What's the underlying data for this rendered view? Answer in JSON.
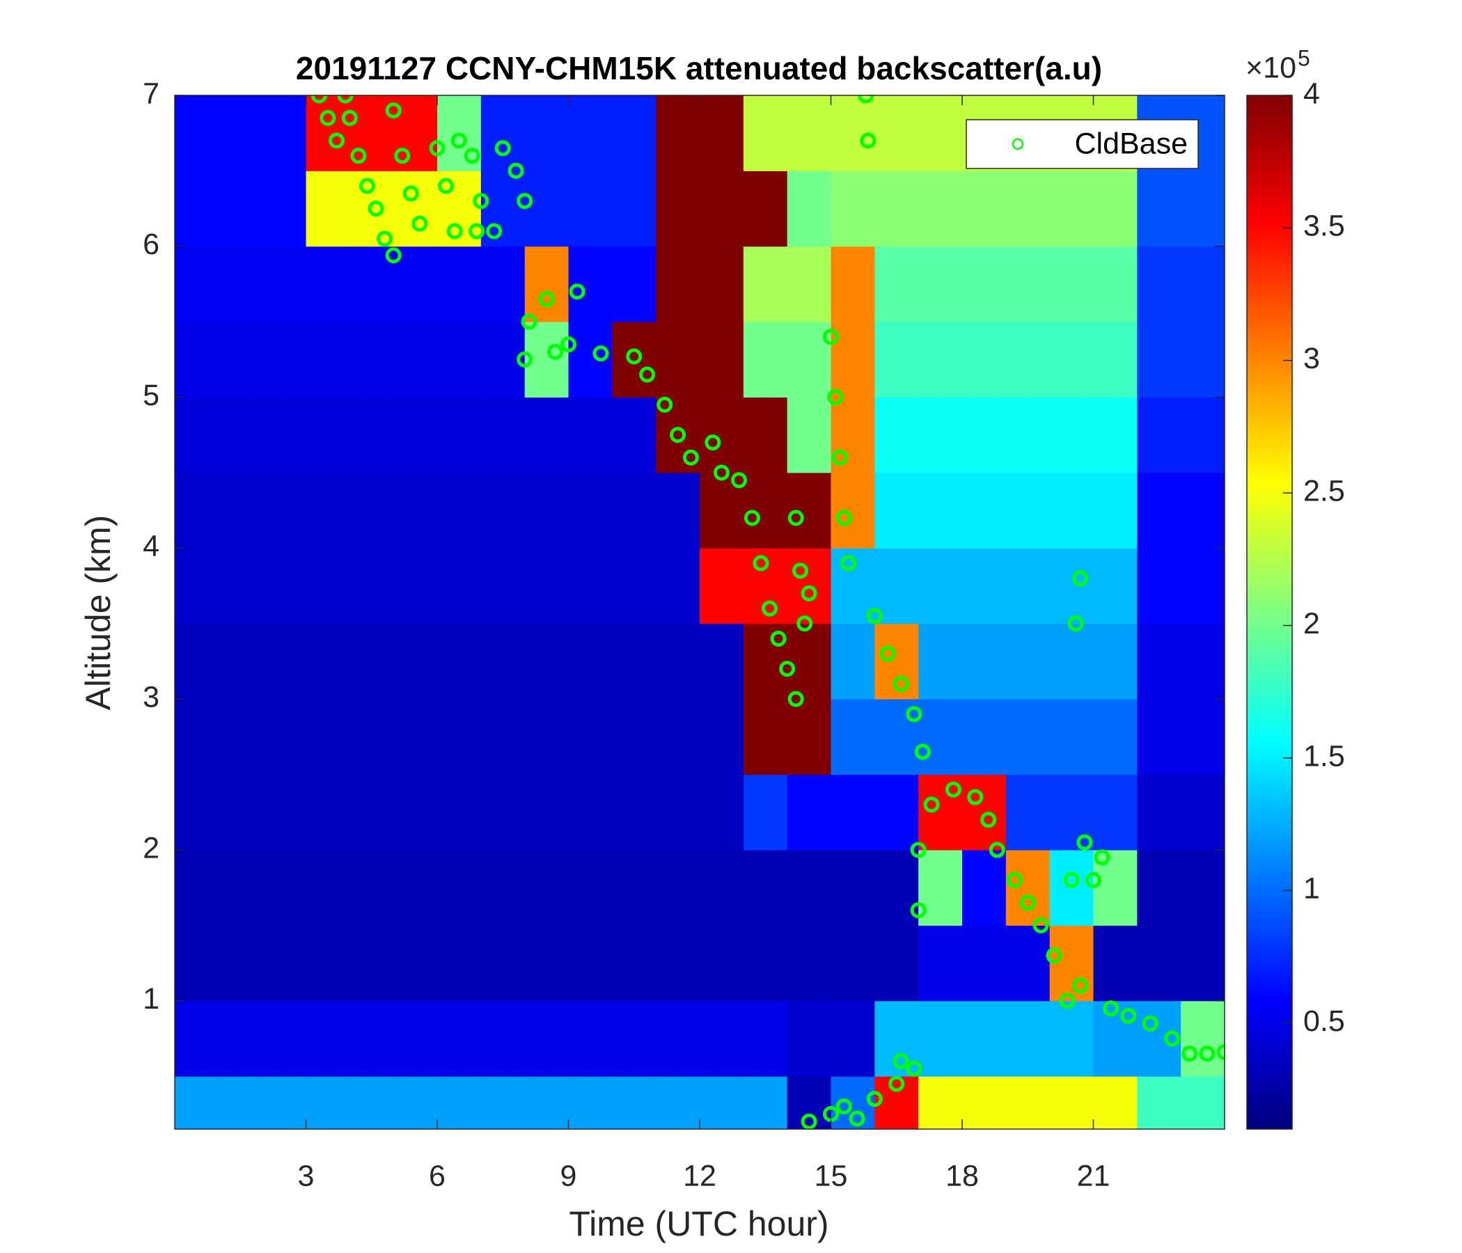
{
  "chart_data": {
    "type": "heatmap",
    "title": "20191127 CCNY-CHM15K attenuated backscatter(a.u)",
    "x_label": "Time (UTC hour)",
    "y_label": "Altitude (km)",
    "xlim": [
      0,
      24
    ],
    "ylim": [
      0.15,
      7
    ],
    "xticks": [
      3,
      6,
      9,
      12,
      15,
      18,
      21
    ],
    "yticks": [
      1,
      2,
      3,
      4,
      5,
      6,
      7
    ],
    "x_edges": [
      0,
      1,
      2,
      3,
      4,
      5,
      6,
      7,
      8,
      9,
      10,
      11,
      12,
      13,
      14,
      15,
      16,
      17,
      18,
      19,
      20,
      21,
      22,
      23,
      24
    ],
    "y_edges": [
      0.15,
      0.5,
      1,
      1.5,
      2,
      2.5,
      3,
      3.5,
      4,
      4.5,
      5,
      5.5,
      6,
      6.5,
      7
    ],
    "z": [
      [
        1.2,
        1.2,
        1.2,
        1.2,
        1.2,
        1.2,
        1.2,
        1.2,
        1.2,
        1.2,
        1.2,
        1.2,
        1.2,
        1.2,
        0.3,
        1.0,
        3.5,
        2.5,
        2.5,
        2.5,
        2.5,
        2.5,
        1.8,
        1.8
      ],
      [
        0.5,
        0.5,
        0.5,
        0.5,
        0.5,
        0.5,
        0.5,
        0.5,
        0.5,
        0.5,
        0.5,
        0.5,
        0.5,
        0.5,
        0.4,
        0.4,
        1.3,
        1.3,
        1.3,
        1.3,
        1.3,
        1.2,
        1.2,
        2
      ],
      [
        0.3,
        0.3,
        0.3,
        0.3,
        0.3,
        0.3,
        0.3,
        0.3,
        0.3,
        0.3,
        0.3,
        0.3,
        0.3,
        0.3,
        0.3,
        0.3,
        0.3,
        0.5,
        0.5,
        0.5,
        3,
        0.3,
        0.3,
        0.3
      ],
      [
        0.3,
        0.3,
        0.3,
        0.3,
        0.3,
        0.3,
        0.3,
        0.3,
        0.3,
        0.3,
        0.3,
        0.3,
        0.3,
        0.3,
        0.3,
        0.3,
        0.3,
        2,
        0.6,
        3,
        1.5,
        2,
        0.3,
        0.3
      ],
      [
        0.35,
        0.35,
        0.35,
        0.35,
        0.35,
        0.35,
        0.35,
        0.35,
        0.35,
        0.35,
        0.35,
        0.35,
        0.35,
        0.8,
        0.6,
        0.6,
        0.6,
        3.5,
        3.5,
        0.8,
        0.8,
        0.8,
        0.4,
        0.4
      ],
      [
        0.35,
        0.35,
        0.35,
        0.35,
        0.35,
        0.35,
        0.35,
        0.35,
        0.35,
        0.35,
        0.35,
        0.35,
        0.35,
        4,
        4,
        1,
        1,
        1,
        1,
        1,
        1,
        1,
        0.5,
        0.5
      ],
      [
        0.35,
        0.35,
        0.35,
        0.35,
        0.35,
        0.35,
        0.35,
        0.35,
        0.35,
        0.35,
        0.35,
        0.35,
        0.35,
        4,
        4,
        1.2,
        3,
        1.2,
        1.2,
        1.2,
        1.2,
        1.2,
        0.5,
        0.5
      ],
      [
        0.4,
        0.4,
        0.4,
        0.4,
        0.4,
        0.4,
        0.4,
        0.4,
        0.4,
        0.4,
        0.4,
        0.4,
        3.5,
        3.5,
        3.5,
        1.3,
        1.3,
        1.3,
        1.3,
        1.3,
        1.3,
        1.3,
        0.6,
        0.6
      ],
      [
        0.4,
        0.4,
        0.4,
        0.4,
        0.4,
        0.4,
        0.4,
        0.4,
        0.4,
        0.4,
        0.4,
        0.4,
        4,
        4,
        4,
        3,
        1.5,
        1.5,
        1.5,
        1.5,
        1.5,
        1.5,
        0.6,
        0.6
      ],
      [
        0.45,
        0.45,
        0.45,
        0.45,
        0.45,
        0.45,
        0.45,
        0.45,
        0.45,
        0.45,
        0.45,
        4,
        4,
        4,
        2,
        3,
        1.6,
        1.6,
        1.6,
        1.6,
        1.6,
        1.6,
        0.7,
        0.7
      ],
      [
        0.5,
        0.5,
        0.5,
        0.5,
        0.5,
        0.5,
        0.5,
        0.5,
        2,
        0.6,
        4,
        4,
        4,
        2,
        2,
        3,
        1.8,
        1.8,
        1.8,
        1.8,
        1.8,
        1.8,
        0.8,
        0.8
      ],
      [
        0.55,
        0.55,
        0.55,
        0.55,
        0.55,
        0.55,
        0.55,
        0.55,
        3,
        0.6,
        0.6,
        4,
        4,
        2.2,
        2.2,
        3,
        1.9,
        1.9,
        1.9,
        1.9,
        1.9,
        1.9,
        0.8,
        0.8
      ],
      [
        0.6,
        0.6,
        0.6,
        2.5,
        2.5,
        2.5,
        2.5,
        0.7,
        0.7,
        0.7,
        0.7,
        4,
        4,
        4,
        2,
        2.1,
        2.1,
        2.1,
        2.1,
        2.1,
        2.1,
        2.1,
        0.9,
        0.9
      ],
      [
        0.6,
        0.6,
        0.6,
        3.5,
        3.5,
        3.5,
        2,
        0.7,
        0.7,
        0.7,
        0.7,
        4,
        4,
        2.3,
        2.3,
        2.3,
        2.3,
        2.3,
        2.3,
        2.3,
        2.3,
        2.3,
        0.9,
        0.9
      ]
    ],
    "colormap": "jet",
    "clim": [
      0.1,
      4
    ],
    "cticks": [
      0.5,
      1,
      1.5,
      2,
      2.5,
      3,
      3.5,
      4
    ],
    "colorbar_multiplier": "×10",
    "colorbar_exponent": "5",
    "legend": "upper right",
    "series": [
      {
        "name": "CldBase",
        "type": "scatter",
        "color": "#00ff00",
        "x": [
          3.3,
          3.5,
          3.7,
          3.9,
          4.0,
          4.2,
          4.4,
          4.6,
          4.8,
          5.0,
          5.0,
          5.2,
          5.4,
          5.6,
          6.0,
          6.2,
          6.4,
          6.5,
          6.8,
          7.0,
          6.9,
          7.3,
          7.5,
          7.8,
          8.0,
          8.0,
          8.1,
          8.5,
          8.7,
          9.0,
          9.2,
          9.74,
          10.5,
          10.8,
          11.2,
          11.5,
          11.8,
          12.3,
          12.5,
          12.9,
          13.2,
          13.4,
          13.6,
          13.8,
          14.0,
          14.2,
          14.4,
          14.3,
          14.5,
          14.2,
          15.0,
          15.1,
          15.2,
          15.3,
          15.4,
          15.8,
          15.85,
          14.5,
          15.0,
          15.3,
          15.6,
          16.0,
          16.5,
          16.9,
          16.6,
          16.0,
          16.3,
          16.6,
          16.9,
          17.1,
          17.0,
          17.0,
          17.3,
          17.8,
          18.3,
          18.6,
          18.8,
          19.2,
          19.5,
          19.8,
          20.1,
          20.4,
          20.7,
          20.5,
          20.6,
          20.7,
          20.8,
          21.0,
          21.2,
          21.4,
          21.8,
          22.3,
          22.8,
          23.2,
          23.6,
          24.0
        ],
        "y": [
          7.0,
          6.85,
          6.7,
          7.0,
          6.85,
          6.6,
          6.4,
          6.25,
          6.05,
          5.94,
          6.9,
          6.6,
          6.35,
          6.15,
          6.65,
          6.4,
          6.1,
          6.7,
          6.6,
          6.3,
          6.1,
          6.1,
          6.65,
          6.5,
          6.3,
          5.25,
          5.5,
          5.65,
          5.3,
          5.35,
          5.7,
          5.29,
          5.27,
          5.15,
          4.95,
          4.75,
          4.6,
          4.7,
          4.5,
          4.45,
          4.2,
          3.9,
          3.6,
          3.4,
          3.2,
          3.0,
          3.5,
          3.85,
          3.7,
          4.2,
          5.4,
          5.0,
          4.6,
          4.2,
          3.9,
          7.0,
          6.7,
          0.2,
          0.25,
          0.3,
          0.22,
          0.35,
          0.45,
          0.55,
          0.6,
          3.55,
          3.3,
          3.1,
          2.9,
          2.65,
          2.0,
          1.6,
          2.3,
          2.4,
          2.35,
          2.2,
          2.0,
          1.8,
          1.65,
          1.5,
          1.3,
          1.0,
          1.1,
          1.8,
          3.5,
          3.8,
          2.05,
          1.8,
          1.95,
          0.95,
          0.9,
          0.85,
          0.75,
          0.65,
          0.65,
          0.66
        ]
      }
    ]
  }
}
